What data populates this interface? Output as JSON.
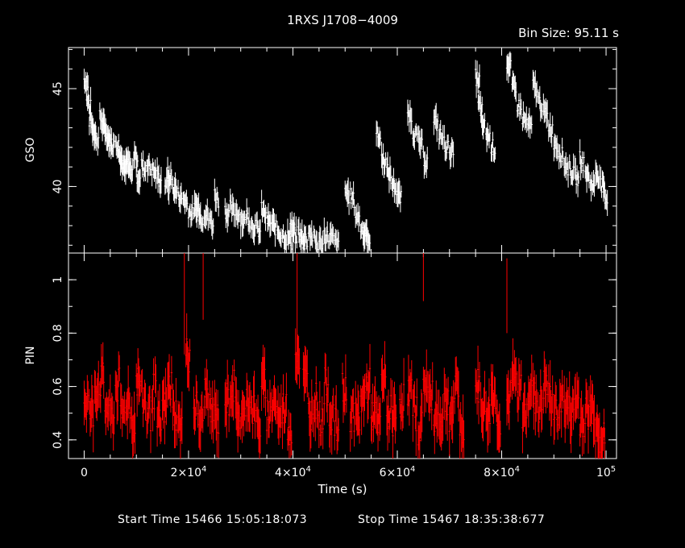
{
  "chart_data": [
    {
      "type": "scatter",
      "title": "1RXS J1708−4009",
      "annotation": "Bin Size:  95.11  s",
      "ylabel": "GSO",
      "xlabel": "",
      "xlim": [
        -3000,
        102000
      ],
      "ylim": [
        36.6,
        47.1
      ],
      "yticks": [
        40,
        45
      ],
      "error_bars": true,
      "color": "#ffffff",
      "series": [
        {
          "x": [
            0,
            500,
            1000,
            1500,
            2000,
            3000,
            3500,
            4000,
            4500,
            5000,
            6000,
            6500,
            7000,
            7500,
            8000,
            8500,
            9500,
            10000,
            11000,
            12000,
            13000,
            14000,
            15500,
            16000,
            17000,
            18000,
            19000,
            20000,
            21000,
            21500,
            22000,
            23000,
            24000,
            25000,
            27000,
            28000,
            29000,
            30000,
            31000,
            32000,
            33000,
            34000,
            35000,
            36000,
            37000,
            38000,
            39000,
            39500,
            40000,
            41000,
            41500,
            42000,
            43000,
            44000,
            45000,
            46000,
            47000,
            48000,
            50000,
            51000,
            52000,
            53000,
            53500,
            54000,
            56000,
            57000,
            58000,
            59000,
            60000,
            62000,
            63000,
            64000,
            65000,
            67000,
            68000,
            69000,
            70000,
            75000,
            75500,
            76000,
            77000,
            78000,
            81000,
            82000,
            83000,
            84000,
            85000,
            86000,
            87000,
            88000,
            89000,
            90000,
            91000,
            92000,
            93000,
            94000,
            95000,
            96000,
            97000,
            98000,
            99000,
            99500
          ],
          "y": [
            45.5,
            44.3,
            43.4,
            43.0,
            42.6,
            43.5,
            43.1,
            42.8,
            42.5,
            42.3,
            42.3,
            41.7,
            41.4,
            41.2,
            41.3,
            40.8,
            41.7,
            40.6,
            41.1,
            41.2,
            40.9,
            40.5,
            40.2,
            40.6,
            40.0,
            39.6,
            39.4,
            38.8,
            38.9,
            39.1,
            38.6,
            38.7,
            38.3,
            39.6,
            38.8,
            38.9,
            38.8,
            38.4,
            38.6,
            38.1,
            37.9,
            38.8,
            38.3,
            38.1,
            37.8,
            37.6,
            37.4,
            38.0,
            37.6,
            37.7,
            37.3,
            37.5,
            37.7,
            37.3,
            37.2,
            37.6,
            37.5,
            37.2,
            39.8,
            39.5,
            38.6,
            37.9,
            37.6,
            37.6,
            42.7,
            41.5,
            40.8,
            40.2,
            39.6,
            43.8,
            42.8,
            42.3,
            41.5,
            43.4,
            42.7,
            42.2,
            41.9,
            45.6,
            44.2,
            43.3,
            42.7,
            42.1,
            46.3,
            45.1,
            44.2,
            43.5,
            43.2,
            45.2,
            44.4,
            43.8,
            43.1,
            42.3,
            41.8,
            41.2,
            40.9,
            40.6,
            41.4,
            40.7,
            40.2,
            40.8,
            40.1,
            39.6
          ]
        }
      ]
    },
    {
      "type": "scatter",
      "ylabel": "PIN",
      "xlabel": "Time (s)",
      "xlim": [
        -3000,
        102000
      ],
      "ylim": [
        0.33,
        1.1
      ],
      "yticks": [
        0.4,
        0.6,
        0.8,
        1
      ],
      "xticks": [
        {
          "value": 0,
          "base": "0",
          "exp": ""
        },
        {
          "value": 20000,
          "base": "2×10",
          "exp": "4"
        },
        {
          "value": 40000,
          "base": "4×10",
          "exp": "4"
        },
        {
          "value": 60000,
          "base": "6×10",
          "exp": "4"
        },
        {
          "value": 80000,
          "base": "8×10",
          "exp": "4"
        },
        {
          "value": 100000,
          "base": "10",
          "exp": "5"
        }
      ],
      "error_bars": true,
      "color": "#ff0000",
      "series": [
        {
          "x": [
            0,
            1000,
            2000,
            3000,
            4000,
            5000,
            6000,
            7000,
            8000,
            9000,
            10000,
            11000,
            12000,
            13000,
            14000,
            15000,
            16000,
            17000,
            18000,
            19500,
            21000,
            22000,
            23000,
            24000,
            25000,
            27000,
            28000,
            29000,
            30000,
            31000,
            32000,
            33000,
            34000,
            35000,
            36000,
            37000,
            38000,
            39000,
            40500,
            42000,
            43000,
            44000,
            45000,
            46000,
            47000,
            48000,
            49500,
            51000,
            52000,
            53000,
            54000,
            55000,
            56000,
            57000,
            58000,
            59000,
            60500,
            62000,
            63000,
            64000,
            65000,
            66000,
            67000,
            68000,
            69000,
            70000,
            71000,
            72000,
            75000,
            76000,
            77000,
            78000,
            79000,
            81000,
            82000,
            83000,
            84000,
            85000,
            86000,
            87000,
            88000,
            89000,
            90000,
            91000,
            92000,
            93000,
            94000,
            95000,
            96000,
            97000,
            98000,
            99000
          ],
          "y": [
            0.55,
            0.5,
            0.6,
            0.62,
            0.52,
            0.48,
            0.6,
            0.5,
            0.55,
            0.47,
            0.62,
            0.55,
            0.5,
            0.58,
            0.45,
            0.52,
            0.6,
            0.5,
            0.45,
            0.72,
            0.52,
            0.46,
            0.58,
            0.5,
            0.48,
            0.55,
            0.6,
            0.5,
            0.47,
            0.56,
            0.52,
            0.45,
            0.6,
            0.5,
            0.55,
            0.48,
            0.52,
            0.45,
            0.72,
            0.62,
            0.5,
            0.55,
            0.48,
            0.6,
            0.5,
            0.45,
            0.58,
            0.5,
            0.47,
            0.55,
            0.6,
            0.5,
            0.45,
            0.62,
            0.5,
            0.48,
            0.55,
            0.58,
            0.5,
            0.45,
            0.62,
            0.55,
            0.5,
            0.48,
            0.55,
            0.5,
            0.58,
            0.45,
            0.6,
            0.52,
            0.5,
            0.58,
            0.48,
            0.55,
            0.62,
            0.58,
            0.5,
            0.6,
            0.55,
            0.52,
            0.6,
            0.55,
            0.5,
            0.55,
            0.52,
            0.5,
            0.55,
            0.48,
            0.5,
            0.52,
            0.45,
            0.4
          ]
        }
      ],
      "spikes": [
        {
          "x": 19200,
          "ytop": 1.1,
          "ybottom": 0.72
        },
        {
          "x": 22800,
          "ytop": 1.1,
          "ybottom": 0.85
        },
        {
          "x": 40800,
          "ytop": 1.1,
          "ybottom": 0.72
        },
        {
          "x": 65000,
          "ytop": 1.1,
          "ybottom": 0.92
        },
        {
          "x": 81000,
          "ytop": 1.08,
          "ybottom": 0.8
        }
      ]
    }
  ],
  "footer": {
    "start": "Start Time 15466  15:05:18:073",
    "stop": "Stop Time 15467  18:35:38:677"
  }
}
